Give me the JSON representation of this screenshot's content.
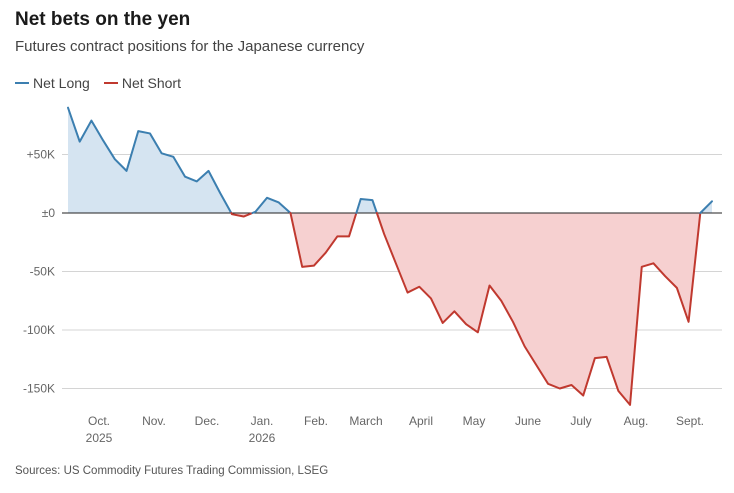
{
  "title": "Net bets on the yen",
  "subtitle": "Futures contract positions for the Japanese currency",
  "source": "Sources: US Commodity Futures Trading Commission, LSEG",
  "legend": [
    {
      "label": "Net Long",
      "color": "#3c7fb0"
    },
    {
      "label": "Net Short",
      "color": "#c0392f"
    }
  ],
  "colors": {
    "long_line": "#3c7fb0",
    "long_fill": "#d5e4f1",
    "short_line": "#c0392f",
    "short_fill": "#f6d0d0",
    "grid": "#d4d4d4",
    "zero_line": "#222222"
  },
  "chart_data": {
    "type": "area",
    "title": "Net bets on the yen",
    "subtitle": "Futures contract positions for the Japanese currency",
    "xlabel": "",
    "ylabel": "",
    "ylim": [
      -162000,
      92000
    ],
    "y_ticks": [
      {
        "value": 50000,
        "label": "+50K"
      },
      {
        "value": 0,
        "label": "±0"
      },
      {
        "value": -50000,
        "label": "-50K"
      },
      {
        "value": -100000,
        "label": "-100K"
      },
      {
        "value": -150000,
        "label": "-150K"
      }
    ],
    "x_ticks": [
      {
        "label": "Oct.",
        "sub": "2025"
      },
      {
        "label": "Nov.",
        "sub": ""
      },
      {
        "label": "Dec.",
        "sub": ""
      },
      {
        "label": "Jan.",
        "sub": "2026"
      },
      {
        "label": "Feb.",
        "sub": ""
      },
      {
        "label": "March",
        "sub": ""
      },
      {
        "label": "April",
        "sub": ""
      },
      {
        "label": "May",
        "sub": ""
      },
      {
        "label": "June",
        "sub": ""
      },
      {
        "label": "July",
        "sub": ""
      },
      {
        "label": "Aug.",
        "sub": ""
      },
      {
        "label": "Sept.",
        "sub": ""
      }
    ],
    "grid": true,
    "legend_position": "top-left",
    "series": [
      {
        "name": "Net Long / Net Short",
        "values": [
          90000,
          61000,
          79000,
          62000,
          46000,
          36000,
          70000,
          68000,
          51000,
          48000,
          31000,
          27000,
          36000,
          17000,
          -1000,
          -3000,
          1000,
          13000,
          9000,
          0,
          -46000,
          -45000,
          -34000,
          -20000,
          -20000,
          12000,
          11000,
          -18000,
          -43000,
          -68000,
          -63000,
          -73000,
          -94000,
          -84000,
          -95000,
          -102000,
          -62000,
          -75000,
          -93000,
          -114000,
          -130000,
          -146000,
          -150000,
          -147000,
          -156000,
          -124000,
          -123000,
          -152000,
          -164000,
          -46000,
          -43000,
          -54000,
          -64000,
          -93000,
          0,
          10000
        ]
      }
    ]
  }
}
